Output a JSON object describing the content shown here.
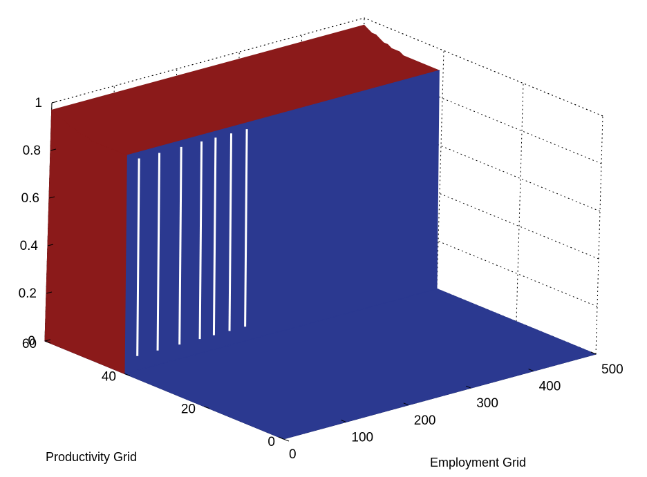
{
  "chart_data": {
    "type": "surface",
    "xlabel": "Employment Grid",
    "ylabel": "Productivity Grid",
    "zlabel": "",
    "x_ticks": [
      "0",
      "100",
      "200",
      "300",
      "400",
      "500"
    ],
    "y_ticks": [
      "0",
      "20",
      "40",
      "60"
    ],
    "z_ticks": [
      "0",
      "0.2",
      "0.4",
      "0.6",
      "0.8",
      "1"
    ],
    "xlim": [
      0,
      500
    ],
    "ylim": [
      0,
      60
    ],
    "zlim": [
      0,
      1
    ],
    "grid": true,
    "colors": {
      "surface": "#2b3990",
      "edge": "#8b1a1a",
      "gap": "#ffffff"
    },
    "series": [
      {
        "description_free": true,
        "profile": {
          "productivity_y": [
            0,
            40,
            41,
            42,
            43,
            44,
            45,
            46,
            47,
            48,
            49,
            50,
            51,
            52,
            53,
            54,
            55,
            56,
            57,
            58,
            59,
            60
          ],
          "value_z_at_low_employment": [
            0,
            0,
            0.91,
            0.91,
            0.91,
            0.91,
            0.91,
            0.91,
            0.91,
            0.91,
            0.91,
            0.91,
            0.92,
            0.92,
            0.92,
            0.93,
            0.93,
            0.94,
            0.95,
            0.95,
            0.96,
            0.97
          ],
          "x_extent": [
            0,
            500
          ],
          "step_productivity": 40
        }
      }
    ]
  }
}
